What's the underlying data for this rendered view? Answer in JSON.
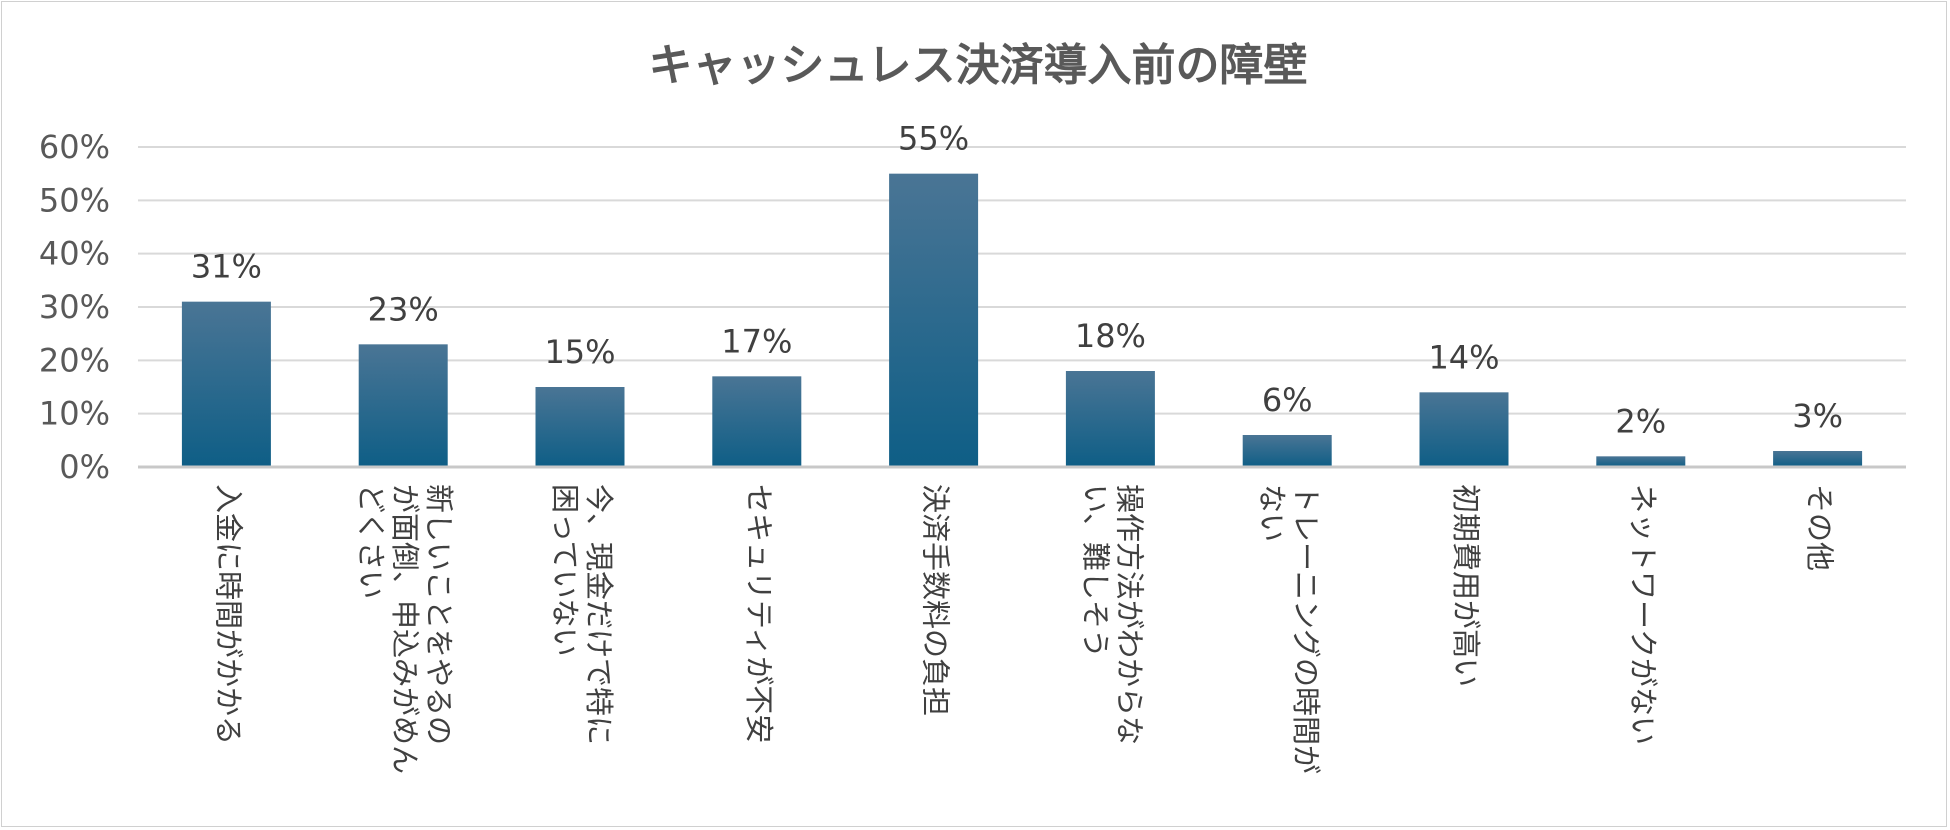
{
  "chart_data": {
    "type": "bar",
    "title": "キャッシュレス決済導入前の障壁",
    "xlabel": "",
    "ylabel": "",
    "ylim": [
      0,
      60
    ],
    "yticks": [
      "0%",
      "10%",
      "20%",
      "30%",
      "40%",
      "50%",
      "60%"
    ],
    "grid": true,
    "categories": [
      [
        "入金に時間がかかる"
      ],
      [
        "新しいことをやるの",
        "が面倒、申込みがめん",
        "どくさい"
      ],
      [
        "今、現金だけで特に",
        "困っていない"
      ],
      [
        "セキュリティが不安"
      ],
      [
        "決済手数料の負担"
      ],
      [
        "操作方法がわからな",
        "い、難しそう"
      ],
      [
        "トレーニングの時間が",
        "ない"
      ],
      [
        "初期費用が高い"
      ],
      [
        "ネットワークがない"
      ],
      [
        "その他"
      ]
    ],
    "values": [
      31,
      23,
      15,
      17,
      55,
      18,
      6,
      14,
      2,
      3
    ],
    "value_labels": [
      "31%",
      "23%",
      "15%",
      "17%",
      "55%",
      "18%",
      "6%",
      "14%",
      "2%",
      "3%"
    ],
    "colors": {
      "bar_top": "#4a7595",
      "bar_bottom": "#0e5e86"
    }
  }
}
